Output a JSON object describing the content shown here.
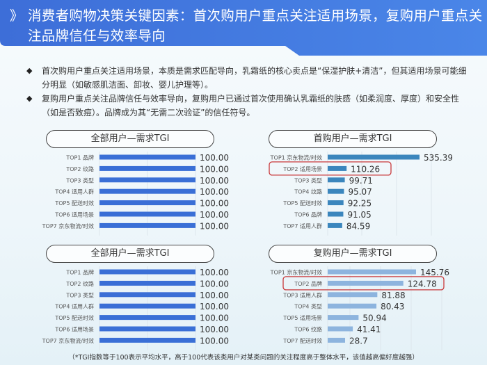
{
  "header": {
    "chevron": "》",
    "title": "消费者购物决策关键因素：首次购用户重点关注适用场景，复购用户重点关注品牌信任与效率导向"
  },
  "bullets": [
    "首次购用户重点关注适用场景，本质是需求匹配导向，乳霜纸的核心卖点是“保湿护肤+清洁”，但其适用场景可能细分明显（如敏感肌洁面、卸妆、婴儿护理等）。",
    "复购用户重点关注品牌信任与效率导向，复购用户已通过首次使用确认乳霜纸的肤感（如柔润度、厚度）和安全性（如是否致痘）。品牌成为其“无需二次验证”的信任符号。"
  ],
  "bullet_icon": "diamond-icon",
  "footnote": "（*TGI指数等于100表示平均水平，高于100代表该类用户对某类问题的关注程度高于整体水平，该值越高偏好度越强）",
  "chart_data": [
    {
      "type": "bar",
      "title": "全部用户—需求TGI",
      "color": "#3a6fd6",
      "xlim": [
        0,
        100
      ],
      "categories": [
        "TOP1 品牌",
        "TOP2 纹路",
        "TOP3 类型",
        "TOP4 适用人群",
        "TOP5 配送时效",
        "TOP6 适用场景",
        "TOP7 京东物流/时效"
      ],
      "values": [
        100,
        100,
        100,
        100,
        100,
        100,
        100
      ],
      "labels": [
        "100.00",
        "100.00",
        "100.00",
        "100.00",
        "100.00",
        "100.00",
        "100.00"
      ],
      "highlight": null
    },
    {
      "type": "bar",
      "title": "首购用户—需求TGI",
      "color": "#3b86bd",
      "xlim": [
        0,
        535.39
      ],
      "categories": [
        "TOP1 京东物流/时效",
        "TOP2 适用场景",
        "TOP3 类型",
        "TOP4 纹路",
        "TOP5 配送时效",
        "TOP6 品牌",
        "TOP7 适用人群"
      ],
      "values": [
        535.39,
        110.26,
        99.71,
        95.07,
        92.25,
        91.05,
        84.59
      ],
      "labels": [
        "535.39",
        "110.26",
        "99.71",
        "95.07",
        "92.25",
        "91.05",
        "84.59"
      ],
      "highlight": 1
    },
    {
      "type": "bar",
      "title": "全部用户—需求TGI",
      "color": "#3a6fd6",
      "xlim": [
        0,
        100
      ],
      "categories": [
        "TOP1 品牌",
        "TOP2 纹路",
        "TOP3 类型",
        "TOP4 适用人群",
        "TOP5 配送时效",
        "TOP6 适用场景",
        "TOP7 京东物流/时效"
      ],
      "values": [
        100,
        100,
        100,
        100,
        100,
        100,
        100
      ],
      "labels": [
        "100.00",
        "100.00",
        "100.00",
        "100.00",
        "100.00",
        "100.00",
        "100.00"
      ],
      "highlight": null
    },
    {
      "type": "bar",
      "title": "复购用户—需求TGI",
      "color": "#8db4de",
      "xlim": [
        0,
        145.76
      ],
      "categories": [
        "TOP1 京东物流/时效",
        "TOP2 品牌",
        "TOP3 适用人群",
        "TOP4 类型",
        "TOP5 适用场景",
        "TOP6 纹路",
        "TOP7 配送时效"
      ],
      "values": [
        145.76,
        124.78,
        81.88,
        80.43,
        50.94,
        41.41,
        28.7
      ],
      "labels": [
        "145.76",
        "124.78",
        "81.88",
        "80.43",
        "50.94",
        "41.41",
        "28.7"
      ],
      "highlight": 1
    }
  ]
}
